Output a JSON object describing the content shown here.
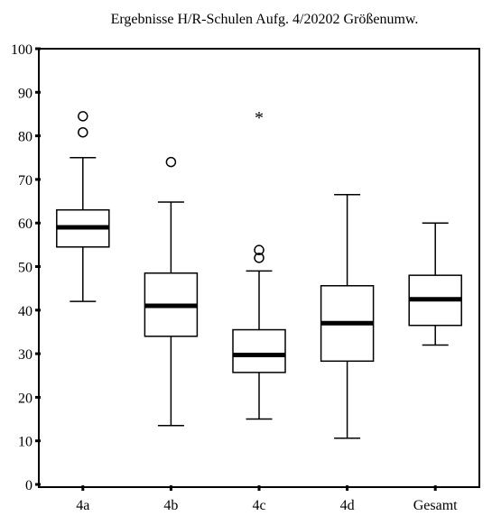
{
  "chart_data": {
    "type": "boxplot",
    "title": "Ergebnisse H/R-Schulen Aufg. 4/20202 Größenumw.",
    "xlabel": "",
    "ylabel": "",
    "ylim": [
      0,
      100
    ],
    "yticks": [
      0,
      10,
      20,
      30,
      40,
      50,
      60,
      70,
      80,
      90,
      100
    ],
    "grid": false,
    "legend": "none",
    "categories": [
      "4a",
      "4b",
      "4c",
      "4d",
      "Gesamt"
    ],
    "boxes": [
      {
        "label": "4a",
        "whisker_low": 42,
        "q1": 54.5,
        "median": 59,
        "q3": 63,
        "whisker_high": 75,
        "outliers": [
          80.8,
          84.5
        ],
        "extremes": []
      },
      {
        "label": "4b",
        "whisker_low": 13.5,
        "q1": 34,
        "median": 41,
        "q3": 48.5,
        "whisker_high": 64.8,
        "outliers": [
          74
        ],
        "extremes": []
      },
      {
        "label": "4c",
        "whisker_low": 15,
        "q1": 25.7,
        "median": 29.7,
        "q3": 35.5,
        "whisker_high": 49,
        "outliers": [
          52,
          53.8
        ],
        "extremes": [
          84.5
        ]
      },
      {
        "label": "4d",
        "whisker_low": 10.6,
        "q1": 28.3,
        "median": 37,
        "q3": 45.6,
        "whisker_high": 66.5,
        "outliers": [],
        "extremes": []
      },
      {
        "label": "Gesamt",
        "whisker_low": 32,
        "q1": 36.5,
        "median": 42.5,
        "q3": 48,
        "whisker_high": 60,
        "outliers": [],
        "extremes": []
      }
    ]
  }
}
